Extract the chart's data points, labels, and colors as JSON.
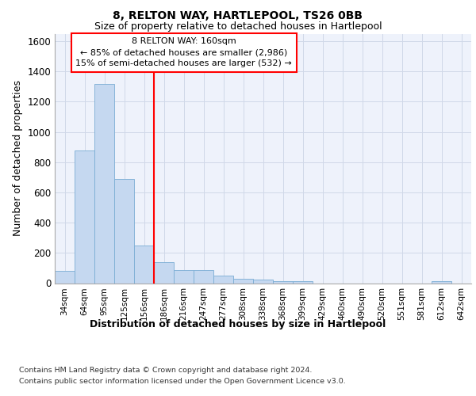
{
  "title1": "8, RELTON WAY, HARTLEPOOL, TS26 0BB",
  "title2": "Size of property relative to detached houses in Hartlepool",
  "xlabel": "Distribution of detached houses by size in Hartlepool",
  "ylabel": "Number of detached properties",
  "categories": [
    "34sqm",
    "64sqm",
    "95sqm",
    "125sqm",
    "156sqm",
    "186sqm",
    "216sqm",
    "247sqm",
    "277sqm",
    "308sqm",
    "338sqm",
    "368sqm",
    "399sqm",
    "429sqm",
    "460sqm",
    "490sqm",
    "520sqm",
    "551sqm",
    "581sqm",
    "612sqm",
    "642sqm"
  ],
  "values": [
    80,
    880,
    1320,
    690,
    250,
    140,
    85,
    85,
    50,
    30,
    25,
    15,
    15,
    0,
    0,
    0,
    0,
    0,
    0,
    15,
    0
  ],
  "bar_color": "#c5d8f0",
  "bar_edge_color": "#7aadd4",
  "annotation_text1": "8 RELTON WAY: 160sqm",
  "annotation_text2": "← 85% of detached houses are smaller (2,986)",
  "annotation_text3": "15% of semi-detached houses are larger (532) →",
  "footer1": "Contains HM Land Registry data © Crown copyright and database right 2024.",
  "footer2": "Contains public sector information licensed under the Open Government Licence v3.0.",
  "ylim": [
    0,
    1650
  ],
  "yticks": [
    0,
    200,
    400,
    600,
    800,
    1000,
    1200,
    1400,
    1600
  ],
  "grid_color": "#d0d8e8",
  "background_color": "#eef2fb"
}
